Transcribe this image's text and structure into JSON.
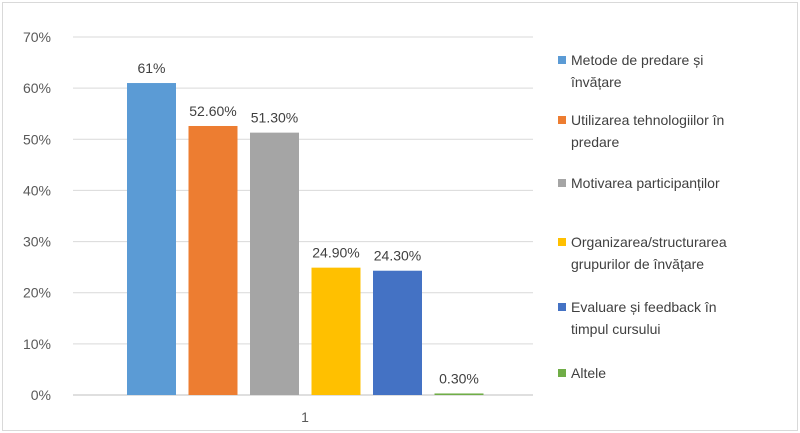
{
  "chart_data": {
    "type": "bar",
    "categories": [
      "1"
    ],
    "series": [
      {
        "name": "Metode de predare și învățare",
        "values": [
          61
        ],
        "label": "61%",
        "color": "#5B9BD5",
        "legend_lines": [
          "Metode de predare și",
          "învățare"
        ]
      },
      {
        "name": "Utilizarea tehnologiilor în predare",
        "values": [
          52.6
        ],
        "label": "52.60%",
        "color": "#ED7D31",
        "legend_lines": [
          "Utilizarea tehnologiilor în",
          "predare"
        ]
      },
      {
        "name": "Motivarea participanților",
        "values": [
          51.3
        ],
        "label": "51.30%",
        "color": "#A5A5A5",
        "legend_lines": [
          "Motivarea participanților"
        ]
      },
      {
        "name": "Organizarea/structurarea grupurilor de învățare",
        "values": [
          24.9
        ],
        "label": "24.90%",
        "color": "#FFC000",
        "legend_lines": [
          "Organizarea/structurarea",
          "grupurilor de învățare"
        ]
      },
      {
        "name": "Evaluare și feedback în timpul cursului",
        "values": [
          24.3
        ],
        "label": "24.30%",
        "color": "#4472C4",
        "legend_lines": [
          "Evaluare și feedback în",
          "timpul cursului"
        ]
      },
      {
        "name": "Altele",
        "values": [
          0.3
        ],
        "label": "0.30%",
        "color": "#70AD47",
        "legend_lines": [
          "Altele"
        ]
      }
    ],
    "y_ticks": [
      "0%",
      "10%",
      "20%",
      "30%",
      "40%",
      "50%",
      "60%",
      "70%"
    ],
    "ylim": [
      0,
      70
    ],
    "y_unit": "percent",
    "grid": true,
    "legend_position": "right",
    "title": "",
    "xlabel": "",
    "ylabel": ""
  }
}
